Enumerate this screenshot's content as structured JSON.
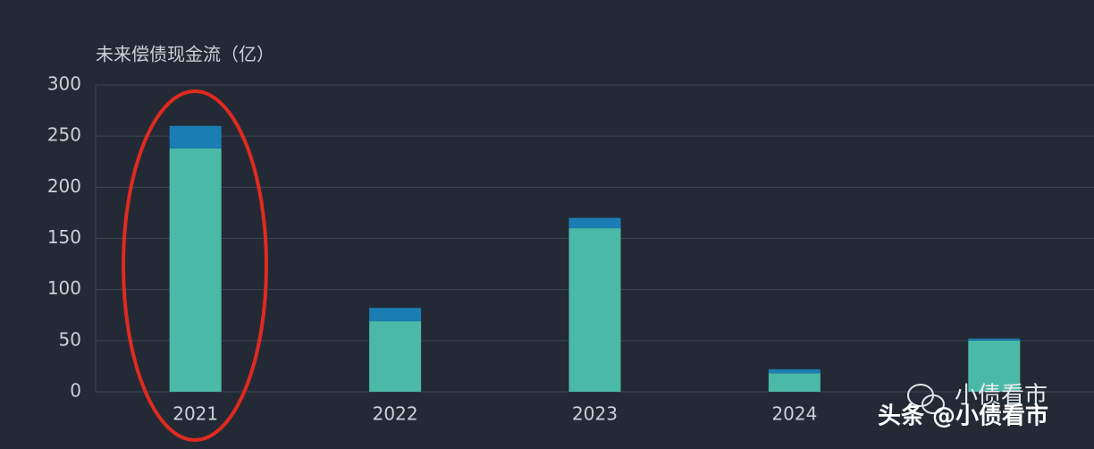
{
  "chart_data": {
    "type": "stacked-bar",
    "title": "未来偿债现金流（亿）",
    "categories": [
      "2021",
      "2022",
      "2023",
      "2024",
      null
    ],
    "series": [
      {
        "color": "#4bb9a7",
        "values": [
          238,
          69,
          160,
          18,
          50
        ]
      },
      {
        "color": "#1a7db4",
        "values": [
          22,
          13,
          10,
          4,
          2
        ]
      }
    ],
    "ylim": [
      0,
      300
    ],
    "yticks": [
      0,
      50,
      100,
      150,
      200,
      250,
      300
    ],
    "grid": true,
    "annotations": [
      "小债看市",
      "头条 @小债看市"
    ]
  }
}
